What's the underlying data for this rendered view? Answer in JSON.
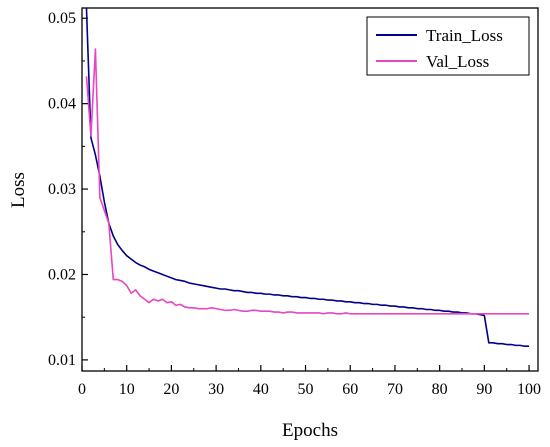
{
  "chart_data": {
    "type": "line",
    "title": "",
    "xlabel": "Epochs",
    "ylabel": "Loss",
    "xlim": [
      0,
      102
    ],
    "ylim": [
      0.0087,
      0.0512
    ],
    "xticks": [
      0,
      10,
      20,
      30,
      40,
      50,
      60,
      70,
      80,
      90,
      100
    ],
    "yticks": [
      0.01,
      0.02,
      0.03,
      0.04,
      0.05
    ],
    "ytick_labels": [
      "0.01",
      "0.02",
      "0.03",
      "0.04",
      "0.05"
    ],
    "grid": false,
    "legend_position": "top-right",
    "series": [
      {
        "name": "Train_Loss",
        "color": "#00008b",
        "x": [
          1,
          2,
          3,
          4,
          5,
          6,
          7,
          8,
          9,
          10,
          11,
          12,
          13,
          14,
          15,
          16,
          17,
          18,
          19,
          20,
          21,
          22,
          23,
          24,
          25,
          26,
          27,
          28,
          29,
          30,
          31,
          32,
          33,
          34,
          35,
          36,
          37,
          38,
          39,
          40,
          41,
          42,
          43,
          44,
          45,
          46,
          47,
          48,
          49,
          50,
          51,
          52,
          53,
          54,
          55,
          56,
          57,
          58,
          59,
          60,
          61,
          62,
          63,
          64,
          65,
          66,
          67,
          68,
          69,
          70,
          71,
          72,
          73,
          74,
          75,
          76,
          77,
          78,
          79,
          80,
          81,
          82,
          83,
          84,
          85,
          86,
          87,
          88,
          89,
          90,
          91,
          92,
          93,
          94,
          95,
          96,
          97,
          98,
          99,
          100
        ],
        "y": [
          0.0512,
          0.036,
          0.034,
          0.0315,
          0.0285,
          0.026,
          0.0245,
          0.0235,
          0.0228,
          0.0222,
          0.0218,
          0.0214,
          0.0211,
          0.0209,
          0.0206,
          0.0204,
          0.0202,
          0.02,
          0.0198,
          0.0196,
          0.0194,
          0.0193,
          0.0192,
          0.019,
          0.0189,
          0.0188,
          0.0187,
          0.0186,
          0.0185,
          0.0184,
          0.0183,
          0.0183,
          0.0182,
          0.0181,
          0.0181,
          0.018,
          0.0179,
          0.0179,
          0.0178,
          0.0178,
          0.0177,
          0.0177,
          0.0176,
          0.0176,
          0.0175,
          0.0175,
          0.0174,
          0.0174,
          0.0173,
          0.0173,
          0.0172,
          0.0172,
          0.0171,
          0.0171,
          0.017,
          0.017,
          0.0169,
          0.0169,
          0.0168,
          0.0168,
          0.0167,
          0.0167,
          0.0166,
          0.0166,
          0.0165,
          0.0165,
          0.0164,
          0.0164,
          0.0163,
          0.0163,
          0.0162,
          0.0162,
          0.0161,
          0.0161,
          0.016,
          0.016,
          0.0159,
          0.0159,
          0.0158,
          0.0158,
          0.0157,
          0.0157,
          0.0156,
          0.0156,
          0.0155,
          0.0155,
          0.0154,
          0.0154,
          0.0153,
          0.0152,
          0.012,
          0.012,
          0.0119,
          0.0119,
          0.0118,
          0.0118,
          0.0117,
          0.0117,
          0.0116,
          0.0116
        ]
      },
      {
        "name": "Val_Loss",
        "color": "#e846c4",
        "x": [
          1,
          2,
          3,
          4,
          5,
          6,
          7,
          8,
          9,
          10,
          11,
          12,
          13,
          14,
          15,
          16,
          17,
          18,
          19,
          20,
          21,
          22,
          23,
          24,
          25,
          26,
          27,
          28,
          29,
          30,
          31,
          32,
          33,
          34,
          35,
          36,
          37,
          38,
          39,
          40,
          41,
          42,
          43,
          44,
          45,
          46,
          47,
          48,
          49,
          50,
          51,
          52,
          53,
          54,
          55,
          56,
          57,
          58,
          59,
          60,
          61,
          62,
          63,
          64,
          65,
          66,
          67,
          68,
          69,
          70,
          71,
          72,
          73,
          74,
          75,
          76,
          77,
          78,
          79,
          80,
          81,
          82,
          83,
          84,
          85,
          86,
          87,
          88,
          89,
          90,
          91,
          92,
          93,
          94,
          95,
          96,
          97,
          98,
          99,
          100
        ],
        "y": [
          0.0432,
          0.0362,
          0.0464,
          0.029,
          0.0275,
          0.026,
          0.0194,
          0.0194,
          0.0192,
          0.0187,
          0.0178,
          0.0182,
          0.0175,
          0.0171,
          0.0167,
          0.0171,
          0.0169,
          0.0171,
          0.0167,
          0.0168,
          0.0164,
          0.0165,
          0.0162,
          0.0161,
          0.0161,
          0.016,
          0.016,
          0.016,
          0.0161,
          0.016,
          0.0159,
          0.0158,
          0.0158,
          0.0159,
          0.0158,
          0.0157,
          0.0157,
          0.0158,
          0.0158,
          0.0157,
          0.0157,
          0.0157,
          0.0156,
          0.0156,
          0.0155,
          0.0156,
          0.0156,
          0.0155,
          0.0155,
          0.0155,
          0.0155,
          0.0155,
          0.0155,
          0.0154,
          0.0155,
          0.0155,
          0.0154,
          0.0154,
          0.0155,
          0.0154,
          0.0154,
          0.0154,
          0.0154,
          0.0154,
          0.0154,
          0.0154,
          0.0154,
          0.0154,
          0.0154,
          0.0154,
          0.0154,
          0.0154,
          0.0154,
          0.0154,
          0.0154,
          0.0154,
          0.0154,
          0.0154,
          0.0154,
          0.0154,
          0.0154,
          0.0154,
          0.0154,
          0.0154,
          0.0154,
          0.0154,
          0.0154,
          0.0154,
          0.0154,
          0.0154,
          0.0154,
          0.0154,
          0.0154,
          0.0154,
          0.0154,
          0.0154,
          0.0154,
          0.0154,
          0.0154,
          0.0154
        ]
      }
    ]
  }
}
